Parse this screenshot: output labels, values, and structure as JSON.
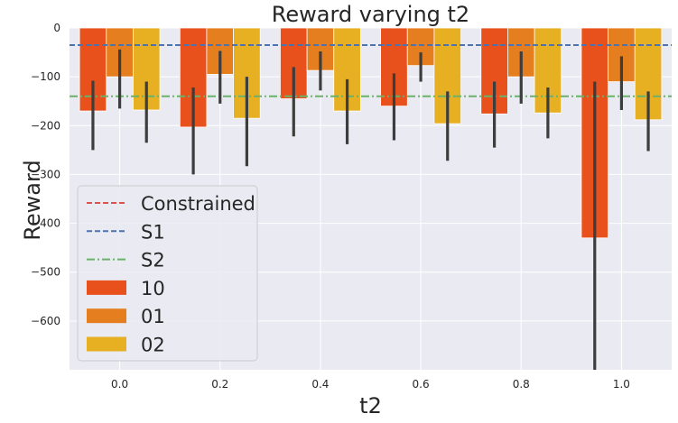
{
  "chart_data": {
    "type": "bar",
    "title": "Reward varying t2",
    "xlabel": "t2",
    "ylabel": "Reward",
    "categories": [
      "0.0",
      "0.2",
      "0.4",
      "0.6",
      "0.8",
      "1.0"
    ],
    "ylim": [
      -700,
      0
    ],
    "yticks": [
      0,
      -100,
      -200,
      -300,
      -400,
      -500,
      -600
    ],
    "grid": true,
    "legend_position": "lower-left",
    "series": [
      {
        "name": "10",
        "color": "#e8501c",
        "values": [
          -170,
          -203,
          -145,
          -160,
          -176,
          -430
        ],
        "err_low": [
          -250,
          -300,
          -222,
          -230,
          -245,
          -700
        ],
        "err_high": [
          -108,
          -122,
          -80,
          -93,
          -110,
          -110
        ]
      },
      {
        "name": "01",
        "color": "#e57e1e",
        "values": [
          -100,
          -95,
          -87,
          -77,
          -100,
          -110
        ],
        "err_low": [
          -165,
          -155,
          -128,
          -110,
          -155,
          -168
        ],
        "err_high": [
          -44,
          -47,
          -48,
          -50,
          -48,
          -58
        ]
      },
      {
        "name": "02",
        "color": "#e6b022",
        "values": [
          -168,
          -185,
          -170,
          -196,
          -174,
          -188
        ],
        "err_low": [
          -235,
          -283,
          -238,
          -272,
          -226,
          -252
        ],
        "err_high": [
          -110,
          -100,
          -105,
          -130,
          -122,
          -130
        ]
      }
    ],
    "reference_lines": [
      {
        "name": "Constrained",
        "value": -35,
        "color": "#d9534f",
        "style": "dashed"
      },
      {
        "name": "S1",
        "value": -35,
        "color": "#4c72b0",
        "style": "dashed"
      },
      {
        "name": "S2",
        "value": -140,
        "color": "#6ab26a",
        "style": "dashdot"
      }
    ]
  }
}
